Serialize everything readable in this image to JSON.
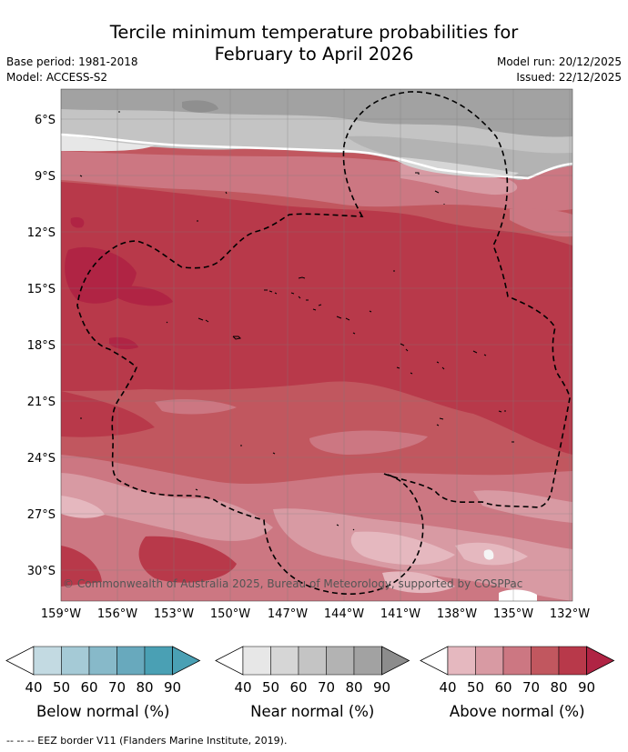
{
  "header": {
    "title_line1": "Tercile minimum temperature probabilities for",
    "title_line2": "February to April 2026",
    "base_period": "Base period: 1981-2018",
    "model": "Model: ACCESS-S2",
    "model_run": "Model run: 20/12/2025",
    "issued": "Issued: 22/12/2025"
  },
  "map": {
    "lat_labels": [
      "6°S",
      "9°S",
      "12°S",
      "15°S",
      "18°S",
      "21°S",
      "24°S",
      "27°S",
      "30°S"
    ],
    "lon_labels": [
      "159°W",
      "156°W",
      "153°W",
      "150°W",
      "147°W",
      "144°W",
      "141°W",
      "138°W",
      "135°W",
      "132°W"
    ],
    "copyright": "© Commonwealth of Australia 2025, Bureau of Meteorology, supported by COSPPac"
  },
  "colors": {
    "below": [
      "#c3dae2",
      "#a5cad6",
      "#87b9c9",
      "#68a9bd",
      "#4aa0b4"
    ],
    "near": [
      "#e7e7e7",
      "#d6d6d6",
      "#c4c4c4",
      "#b3b3b3",
      "#a2a2a2"
    ],
    "above": [
      "#e5b8bf",
      "#d89aa3",
      "#cc7782",
      "#c1575f",
      "#b8394a",
      "#b02444"
    ]
  },
  "legends": [
    {
      "label": "Below normal (%)",
      "ticks": [
        "40",
        "50",
        "60",
        "70",
        "80",
        "90"
      ]
    },
    {
      "label": "Near normal (%)",
      "ticks": [
        "40",
        "50",
        "60",
        "70",
        "80",
        "90"
      ]
    },
    {
      "label": "Above normal (%)",
      "ticks": [
        "40",
        "50",
        "60",
        "70",
        "80",
        "90"
      ]
    }
  ],
  "footer": "--  --  -- EEZ border V11 (Flanders Marine Institute, 2019)."
}
